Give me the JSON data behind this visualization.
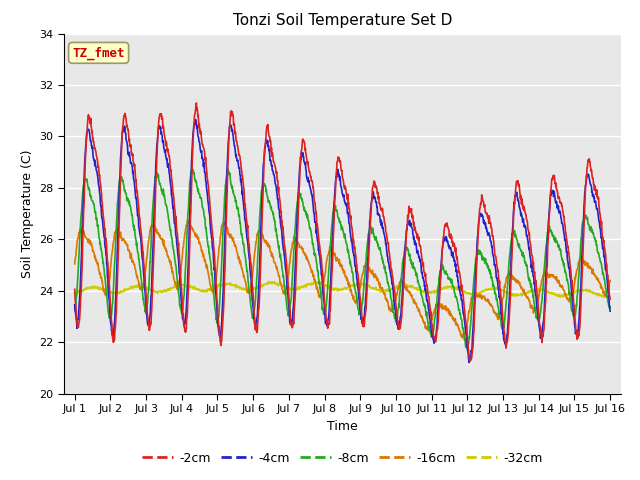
{
  "title": "Tonzi Soil Temperature Set D",
  "xlabel": "Time",
  "ylabel": "Soil Temperature (C)",
  "annotation_text": "TZ_fmet",
  "annotation_color": "#cc0000",
  "annotation_bg": "#ffffcc",
  "annotation_border": "#999966",
  "ylim": [
    20,
    34
  ],
  "bg_color": "#e8e8e8",
  "line_colors": {
    "-2cm": "#dd2222",
    "-4cm": "#2222cc",
    "-8cm": "#22aa22",
    "-16cm": "#dd7700",
    "-32cm": "#cccc00"
  },
  "legend_labels": [
    "-2cm",
    "-4cm",
    "-8cm",
    "-16cm",
    "-32cm"
  ],
  "xtick_labels": [
    "Jul 1",
    "Jul 2",
    "Jul 3",
    "Jul 4",
    "Jul 5",
    "Jul 6",
    "Jul 7",
    "Jul 8",
    "Jul 9",
    "Jul 10",
    "Jul 11",
    "Jul 12",
    "Jul 13",
    "Jul 14",
    "Jul 15",
    "Jul 16"
  ],
  "xtick_positions": [
    0,
    1,
    2,
    3,
    4,
    5,
    6,
    7,
    8,
    9,
    10,
    11,
    12,
    13,
    14,
    15
  ]
}
